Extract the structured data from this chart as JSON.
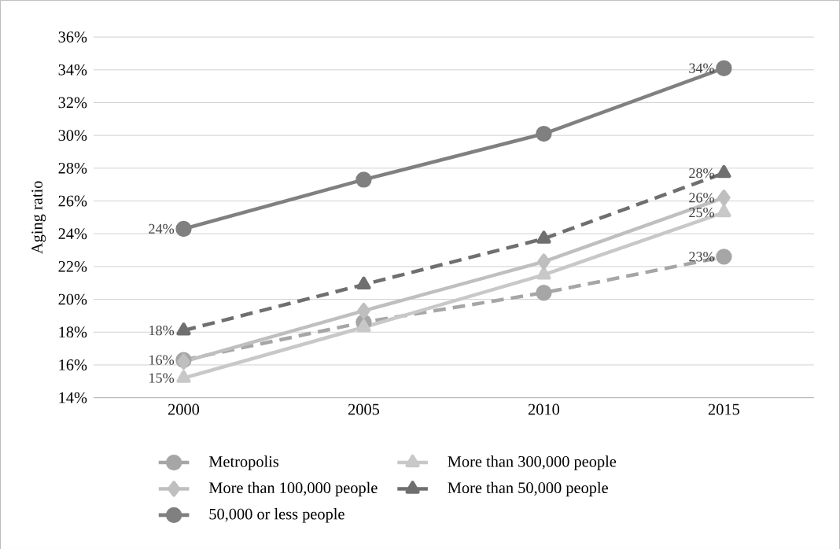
{
  "chart_data": {
    "type": "line",
    "ylabel": "Aging ratio",
    "x": [
      2000,
      2005,
      2010,
      2015
    ],
    "xlim": [
      1997.5,
      2017.5
    ],
    "xticks": [
      2000,
      2005,
      2010,
      2015
    ],
    "ylim": [
      14,
      36
    ],
    "yticks": [
      {
        "value": 14,
        "label": "14%"
      },
      {
        "value": 16,
        "label": "16%"
      },
      {
        "value": 18,
        "label": "18%"
      },
      {
        "value": 20,
        "label": "20%"
      },
      {
        "value": 22,
        "label": "22%"
      },
      {
        "value": 24,
        "label": "24%"
      },
      {
        "value": 26,
        "label": "26%"
      },
      {
        "value": 28,
        "label": "28%"
      },
      {
        "value": 30,
        "label": "30%"
      },
      {
        "value": 32,
        "label": "32%"
      },
      {
        "value": 34,
        "label": "34%"
      },
      {
        "value": 36,
        "label": "36%"
      }
    ],
    "grid": "y",
    "legend": "bottom",
    "series": [
      {
        "name": "Metropolis",
        "color": "#a6a6a6",
        "marker": "circle",
        "line_style": "dashed",
        "values": [
          16.3,
          18.6,
          20.4,
          22.6
        ],
        "value_labels": [
          "16%",
          null,
          null,
          "23%"
        ]
      },
      {
        "name": "More than 300,000 people",
        "color": "#c8c8c8",
        "marker": "triangle",
        "line_style": "solid",
        "values": [
          15.2,
          18.3,
          21.5,
          25.3
        ],
        "value_labels": [
          "15%",
          null,
          null,
          "25%"
        ]
      },
      {
        "name": "More than 100,000 people",
        "color": "#bfbfbf",
        "marker": "diamond",
        "line_style": "solid",
        "values": [
          16.2,
          19.3,
          22.3,
          26.2
        ],
        "value_labels": [
          null,
          null,
          null,
          "26%"
        ]
      },
      {
        "name": "More than 50,000 people",
        "color": "#6f6f6f",
        "marker": "triangle",
        "line_style": "dashed",
        "values": [
          18.1,
          20.9,
          23.7,
          27.7
        ],
        "value_labels": [
          "18%",
          null,
          null,
          "28%"
        ]
      },
      {
        "name": "50,000 or less people",
        "color": "#808080",
        "marker": "circle",
        "line_style": "solid",
        "values": [
          24.3,
          27.3,
          30.1,
          34.1
        ],
        "value_labels": [
          "24%",
          null,
          null,
          "34%"
        ]
      }
    ]
  }
}
